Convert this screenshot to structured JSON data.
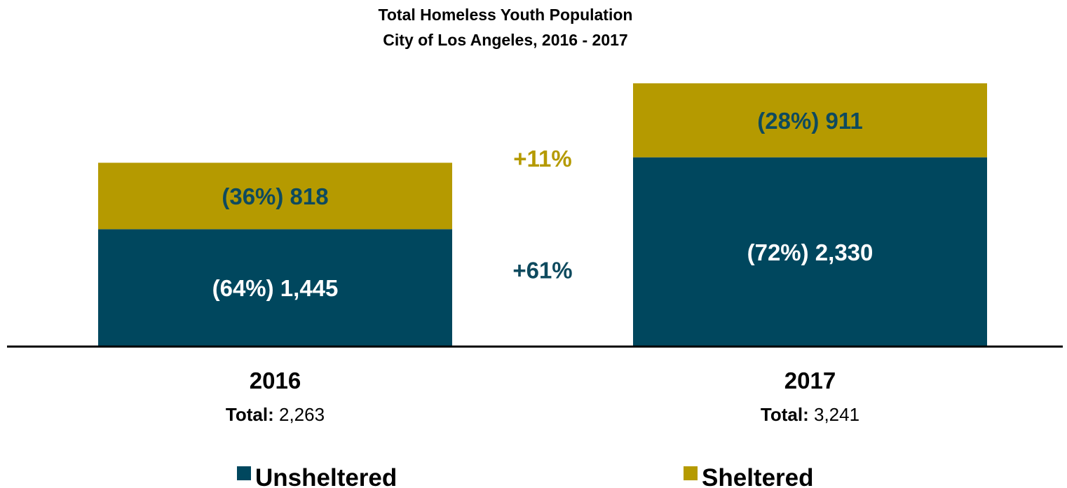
{
  "chart_data": {
    "type": "bar",
    "stacked": true,
    "title": "Total Homeless Youth Population",
    "subtitle": "City of Los Angeles, 2016 - 2017",
    "categories": [
      "2016",
      "2017"
    ],
    "totals_label": "Total:",
    "totals": [
      "2,263",
      "3,241"
    ],
    "series": [
      {
        "name": "Unsheltered",
        "color": "#00475e",
        "label_color": "#ffffff",
        "values": [
          1445,
          2330
        ],
        "labels": [
          "(64%) 1,445",
          "(72%) 2,330"
        ]
      },
      {
        "name": "Sheltered",
        "color": "#b59a00",
        "label_color": "#0e4a5e",
        "values": [
          818,
          911
        ],
        "labels": [
          "(36%) 818",
          "(28%) 911"
        ]
      }
    ],
    "change_annotations": [
      {
        "series": "Sheltered",
        "text": "+11%",
        "color": "#b59a00"
      },
      {
        "series": "Unsheltered",
        "text": "+61%",
        "color": "#0e4a5e"
      }
    ],
    "ylim": [
      0,
      3241
    ],
    "grid": false,
    "legend_position": "bottom"
  }
}
